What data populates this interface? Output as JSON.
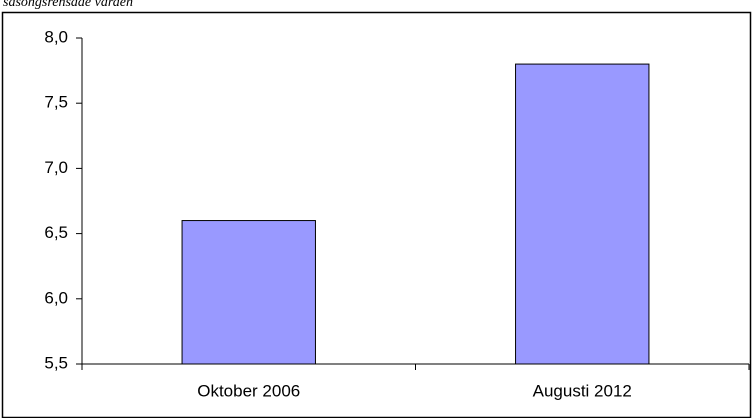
{
  "chart_data": {
    "type": "bar",
    "subtitle": "säsongsrensade värden",
    "categories": [
      "Oktober 2006",
      "Augusti 2012"
    ],
    "values": [
      6.6,
      7.8
    ],
    "color": "#9999ff",
    "ylim": [
      5.5,
      8.0
    ],
    "yticks": [
      {
        "value": 5.5,
        "label": "5,5"
      },
      {
        "value": 6.0,
        "label": "6,0"
      },
      {
        "value": 6.5,
        "label": "6,5"
      },
      {
        "value": 7.0,
        "label": "7,0"
      },
      {
        "value": 7.5,
        "label": "7,5"
      },
      {
        "value": 8.0,
        "label": "8,0"
      }
    ],
    "grid": false
  }
}
